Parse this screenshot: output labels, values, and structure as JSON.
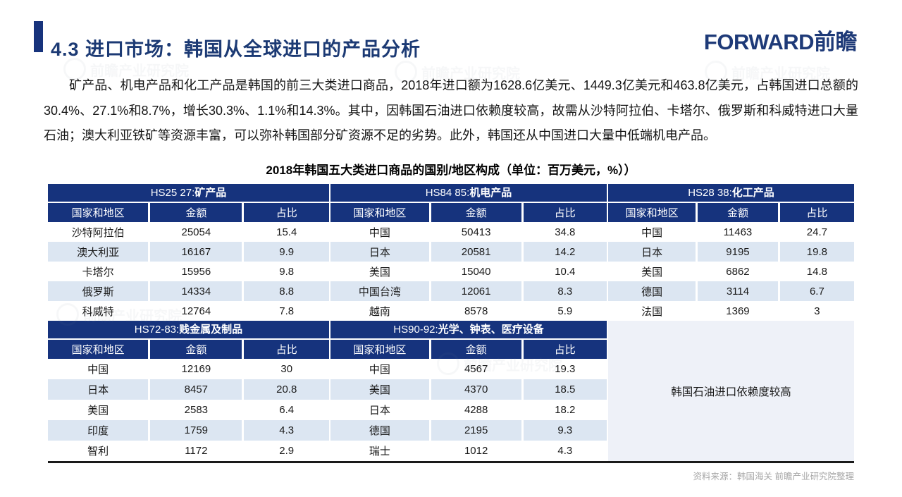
{
  "header": {
    "title": "4.3 进口市场：韩国从全球进口的产品分析",
    "logo": "FORWARD前瞻",
    "accent_color": "#17337c"
  },
  "intro": {
    "text": "矿产品、机电产品和化工产品是韩国的前三大类进口商品，2018年进口额为1628.6亿美元、1449.3亿美元和463.8亿美元，占韩国进口总额的30.4%、27.1%和8.7%，增长30.3%、1.1%和14.3%。其中，因韩国石油进口依赖度较高，故需从沙特阿拉伯、卡塔尔、俄罗斯和科威特进口大量石油；澳大利亚铁矿等资源丰富，可以弥补韩国部分矿资源不足的劣势。此外，韩国还从中国进口大量中低端机电产品。"
  },
  "table_title": "2018年韩国五大类进口商品的国别/地区构成（单位：百万美元，%））",
  "column_headers": [
    "国家和地区",
    "金额",
    "占比"
  ],
  "tables": [
    {
      "code": "HS25 27:",
      "name": "矿产品",
      "rows": [
        [
          "沙特阿拉伯",
          "25054",
          "15.4"
        ],
        [
          "澳大利亚",
          "16167",
          "9.9"
        ],
        [
          "卡塔尔",
          "15956",
          "9.8"
        ],
        [
          "俄罗斯",
          "14334",
          "8.8"
        ],
        [
          "科威特",
          "12764",
          "7.8"
        ]
      ]
    },
    {
      "code": "HS84 85:",
      "name": "机电产品",
      "rows": [
        [
          "中国",
          "50413",
          "34.8"
        ],
        [
          "日本",
          "20581",
          "14.2"
        ],
        [
          "美国",
          "15040",
          "10.4"
        ],
        [
          "中国台湾",
          "12061",
          "8.3"
        ],
        [
          "越南",
          "8578",
          "5.9"
        ]
      ]
    },
    {
      "code": "HS28 38:",
      "name": "化工产品",
      "rows": [
        [
          "中国",
          "11463",
          "24.7"
        ],
        [
          "日本",
          "9195",
          "19.8"
        ],
        [
          "美国",
          "6862",
          "14.8"
        ],
        [
          "德国",
          "3114",
          "6.7"
        ],
        [
          "法国",
          "1369",
          "3"
        ]
      ]
    },
    {
      "code": "HS72-83:",
      "name": "贱金属及制品",
      "rows": [
        [
          "中国",
          "12169",
          "30"
        ],
        [
          "日本",
          "8457",
          "20.8"
        ],
        [
          "美国",
          "2583",
          "6.4"
        ],
        [
          "印度",
          "1759",
          "4.3"
        ],
        [
          "智利",
          "1172",
          "2.9"
        ]
      ]
    },
    {
      "code": "HS90-92:",
      "name": "光学、钟表、医疗设备",
      "rows": [
        [
          "中国",
          "4567",
          "19.3"
        ],
        [
          "美国",
          "4370",
          "18.5"
        ],
        [
          "日本",
          "4288",
          "18.2"
        ],
        [
          "德国",
          "2195",
          "9.3"
        ],
        [
          "瑞士",
          "1012",
          "4.3"
        ]
      ]
    }
  ],
  "note": "韩国石油进口依赖度较高",
  "source": "资料来源：韩国海关  前瞻产业研究院整理",
  "watermark": "前瞻产业研究院",
  "colors": {
    "header_navy": "#16337d",
    "alt_row": "#dce6f2",
    "note_panel": "#eef1f8",
    "title_text": "#1c3a74"
  }
}
